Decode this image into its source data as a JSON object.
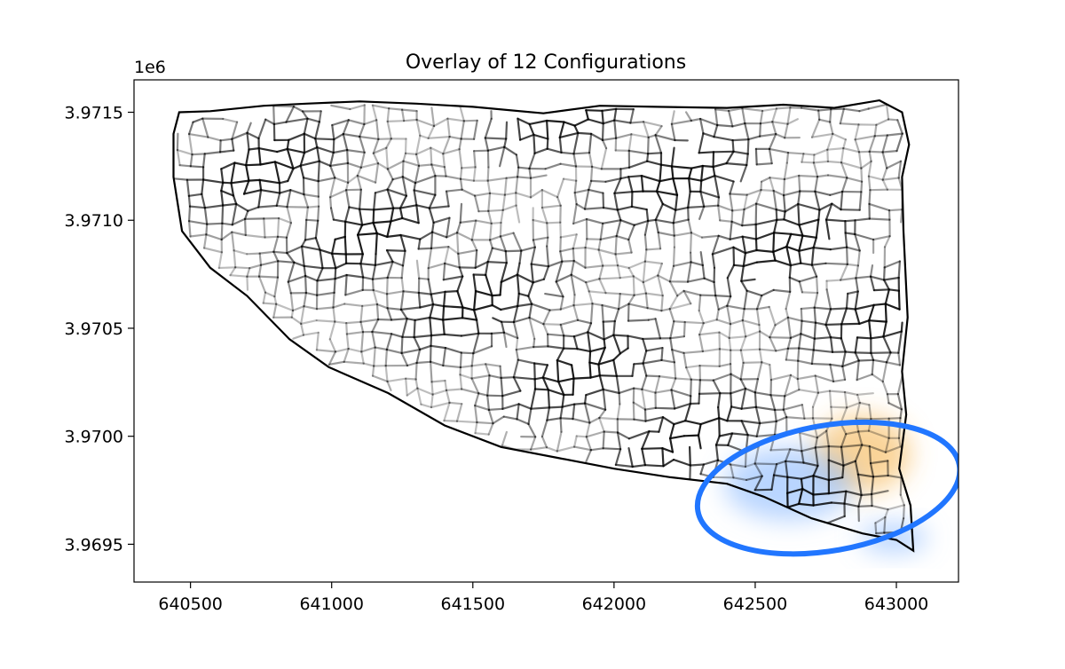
{
  "chart_data": {
    "type": "map",
    "title": "Overlay of 12 Configurations",
    "xlabel": "",
    "ylabel": "",
    "y_offset_label": "1e6",
    "xlim": [
      640300,
      643220
    ],
    "ylim": [
      3969325,
      3971650
    ],
    "xticks": [
      640500,
      641000,
      641500,
      642000,
      642500,
      643000
    ],
    "xtick_labels": [
      "640500",
      "641000",
      "641500",
      "642000",
      "642500",
      "643000"
    ],
    "yticks": [
      3969500,
      3970000,
      3970500,
      3971000,
      3971500
    ],
    "ytick_labels": [
      "3.9695",
      "3.9700",
      "3.9705",
      "3.9710",
      "3.9715"
    ],
    "grid": false,
    "boundary": [
      [
        640460,
        3971500
      ],
      [
        640570,
        3971505
      ],
      [
        640760,
        3971530
      ],
      [
        640910,
        3971540
      ],
      [
        641100,
        3971550
      ],
      [
        641300,
        3971540
      ],
      [
        641500,
        3971525
      ],
      [
        641750,
        3971495
      ],
      [
        641950,
        3971530
      ],
      [
        642150,
        3971525
      ],
      [
        642400,
        3971520
      ],
      [
        642600,
        3971535
      ],
      [
        642780,
        3971520
      ],
      [
        642940,
        3971555
      ],
      [
        643020,
        3971500
      ],
      [
        643045,
        3971350
      ],
      [
        643020,
        3971200
      ],
      [
        643025,
        3970950
      ],
      [
        643040,
        3970550
      ],
      [
        643020,
        3970300
      ],
      [
        643035,
        3970100
      ],
      [
        643010,
        3969850
      ],
      [
        643050,
        3969680
      ],
      [
        643060,
        3969470
      ],
      [
        643000,
        3969520
      ],
      [
        642880,
        3969550
      ],
      [
        642700,
        3969620
      ],
      [
        642530,
        3969720
      ],
      [
        642400,
        3969780
      ],
      [
        642200,
        3969810
      ],
      [
        642000,
        3969850
      ],
      [
        641800,
        3969900
      ],
      [
        641600,
        3969950
      ],
      [
        641400,
        3970050
      ],
      [
        641200,
        3970200
      ],
      [
        640990,
        3970320
      ],
      [
        640850,
        3970450
      ],
      [
        640700,
        3970650
      ],
      [
        640570,
        3970780
      ],
      [
        640470,
        3970950
      ],
      [
        640440,
        3971200
      ],
      [
        640440,
        3971400
      ],
      [
        640460,
        3971500
      ]
    ],
    "configurations": 12,
    "highlight_regions": [
      {
        "name": "orange-cluster",
        "color": "#F5B041",
        "center": [
          642880,
          3969920
        ],
        "radii": [
          170,
          180
        ]
      },
      {
        "name": "blue-cluster",
        "color": "#7FB3FF",
        "center": [
          642620,
          3969780
        ],
        "radii": [
          230,
          170
        ]
      },
      {
        "name": "blue-tail",
        "color": "#7FB3FF",
        "center": [
          642990,
          3969530
        ],
        "radii": [
          120,
          70
        ]
      }
    ],
    "annotation_ellipse": {
      "color": "#2176FF",
      "center": [
        642760,
        3969760
      ],
      "radii": [
        470,
        290
      ]
    }
  }
}
